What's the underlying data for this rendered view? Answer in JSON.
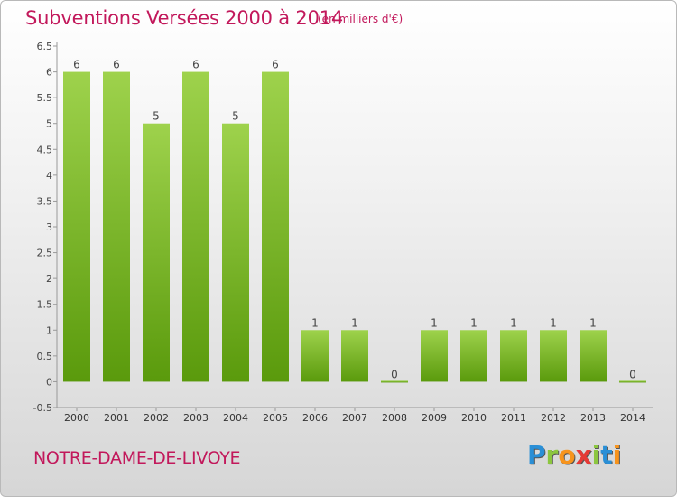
{
  "title": "Subventions Versées 2000 à 2014",
  "unit_note": "(en milliers d'€)",
  "commune": "NOTRE-DAME-DE-LIVOYE",
  "logo": {
    "letters": [
      "P",
      "r",
      "o",
      "x",
      "i",
      "t",
      "i"
    ],
    "colors": [
      "#2a8fd6",
      "#8cc63f",
      "#f7941d",
      "#e53935",
      "#8cc63f",
      "#2a8fd6",
      "#f7941d"
    ]
  },
  "colors": {
    "bar_top": "#9ed24c",
    "bar_bottom": "#5a9a0c",
    "text": "#c2185b"
  },
  "chart_data": {
    "type": "bar",
    "categories": [
      "2000",
      "2001",
      "2002",
      "2003",
      "2004",
      "2005",
      "2006",
      "2007",
      "2008",
      "2009",
      "2010",
      "2011",
      "2012",
      "2013",
      "2014"
    ],
    "values": [
      6,
      6,
      5,
      6,
      5,
      6,
      1,
      1,
      0,
      1,
      1,
      1,
      1,
      1,
      0
    ],
    "data_labels": [
      "6",
      "6",
      "5",
      "6",
      "5",
      "6",
      "1",
      "1",
      "0",
      "1",
      "1",
      "1",
      "1",
      "1",
      "0"
    ],
    "y_ticks": [
      "-0.5",
      "0",
      "0.5",
      "1",
      "1.5",
      "2",
      "2.5",
      "3",
      "3.5",
      "4",
      "4.5",
      "5",
      "5.5",
      "6",
      "6.5"
    ],
    "ylim": [
      -0.5,
      6.5
    ],
    "grid": false,
    "legend": "none"
  }
}
